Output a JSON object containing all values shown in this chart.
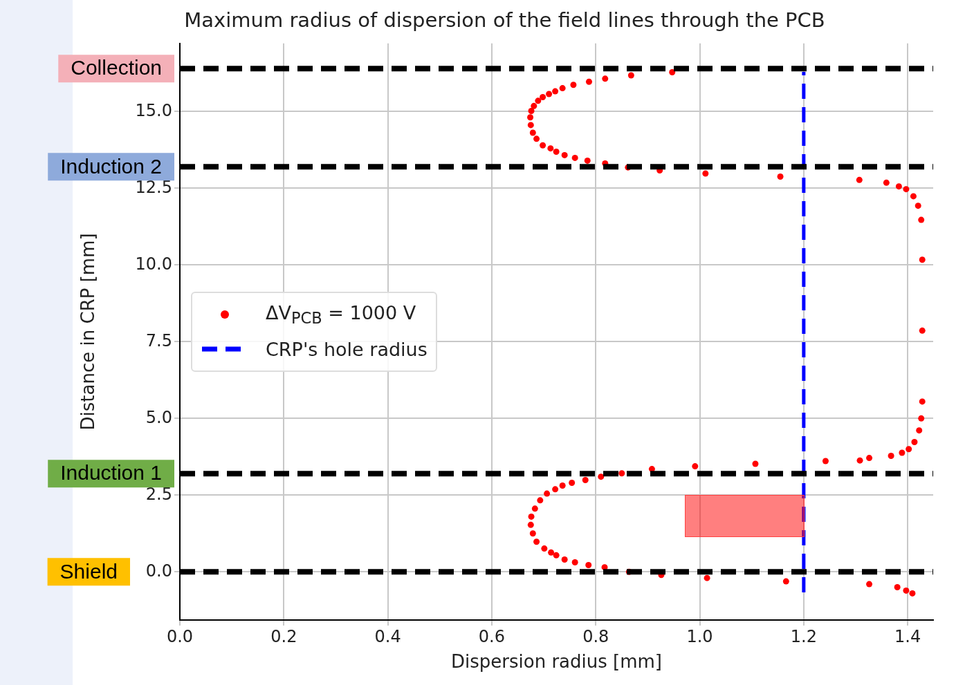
{
  "chart_data": {
    "type": "scatter",
    "title": "Maximum radius of dispersion of the field lines through the PCB",
    "xlabel": "Dispersion radius [mm]",
    "ylabel": "Distance in CRP [mm]",
    "xlim": [
      0,
      1.449
    ],
    "xticks": [
      {
        "value": 0,
        "label": "0.0"
      },
      {
        "value": 0.2,
        "label": "0.2"
      },
      {
        "value": 0.4,
        "label": "0.4"
      },
      {
        "value": 0.6,
        "label": "0.6"
      },
      {
        "value": 0.8,
        "label": "0.8"
      },
      {
        "value": 1,
        "label": "1.0"
      },
      {
        "value": 1.2,
        "label": "1.2"
      },
      {
        "value": 1.4,
        "label": "1.4"
      }
    ],
    "ylim": [
      -1.57,
      17.22
    ],
    "yticks": [
      {
        "value": 0,
        "label": "0.0"
      },
      {
        "value": 2.5,
        "label": "2.5"
      },
      {
        "value": 5,
        "label": "5.0"
      },
      {
        "value": 7.5,
        "label": "7.5"
      },
      {
        "value": 10,
        "label": "10.0"
      },
      {
        "value": 12.5,
        "label": "12.5"
      },
      {
        "value": 15,
        "label": "15.0"
      }
    ],
    "grid": true,
    "legend": "left",
    "series": [
      {
        "name": "ΔV$_{PCB}$ = 1000 V",
        "type": "scatter",
        "marker": "circle",
        "color": "#ff0000",
        "x": [
          0.947,
          0.868,
          0.818,
          0.787,
          0.757,
          0.736,
          0.722,
          0.71,
          0.698,
          0.689,
          0.681,
          0.676,
          0.674,
          0.675,
          0.679,
          0.686,
          0.698,
          0.713,
          0.724,
          0.74,
          0.76,
          0.784,
          0.818,
          0.862,
          0.923,
          1.011,
          1.155,
          1.307,
          1.359,
          1.383,
          1.397,
          1.411,
          1.42,
          1.426,
          1.428,
          1.428,
          1.428,
          1.426,
          1.422,
          1.413,
          1.402,
          1.389,
          1.368,
          1.326,
          1.308,
          1.242,
          1.107,
          0.991,
          0.908,
          0.85,
          0.81,
          0.78,
          0.754,
          0.736,
          0.722,
          0.706,
          0.693,
          0.683,
          0.676,
          0.675,
          0.679,
          0.686,
          0.701,
          0.714,
          0.724,
          0.74,
          0.76,
          0.786,
          0.817,
          0.864,
          0.926,
          1.014,
          1.166,
          1.326,
          1.38,
          1.397,
          1.409
        ],
        "values": [
          16.28,
          16.18,
          16.07,
          15.97,
          15.87,
          15.76,
          15.66,
          15.57,
          15.47,
          15.35,
          15.18,
          15.02,
          14.81,
          14.56,
          14.31,
          14.11,
          13.9,
          13.8,
          13.69,
          13.58,
          13.49,
          13.4,
          13.31,
          13.18,
          13.08,
          12.98,
          12.88,
          12.77,
          12.68,
          12.56,
          12.47,
          12.24,
          11.93,
          11.47,
          10.17,
          7.86,
          5.55,
          5.0,
          4.61,
          4.23,
          4.0,
          3.88,
          3.78,
          3.71,
          3.63,
          3.61,
          3.52,
          3.44,
          3.35,
          3.21,
          3.1,
          2.99,
          2.9,
          2.81,
          2.69,
          2.55,
          2.33,
          2.06,
          1.8,
          1.53,
          1.25,
          0.98,
          0.76,
          0.63,
          0.54,
          0.4,
          0.31,
          0.22,
          0.15,
          0.0,
          -0.1,
          -0.2,
          -0.31,
          -0.4,
          -0.5,
          -0.61,
          -0.7
        ]
      },
      {
        "name": "CRP's hole radius",
        "type": "line",
        "marker": "none",
        "line_style": "dashed",
        "color": "#0000ff",
        "x": [
          1.2,
          1.2
        ],
        "values": [
          -0.67,
          16.29
        ]
      }
    ],
    "ref_lines": [
      {
        "axis": "y",
        "value": 16.4,
        "label": "Collection",
        "color": "#000000",
        "line_style": "dashed"
      },
      {
        "axis": "y",
        "value": 13.2,
        "label": "Induction 2",
        "color": "#000000",
        "line_style": "dashed"
      },
      {
        "axis": "y",
        "value": 3.2,
        "label": "Induction 1",
        "color": "#000000",
        "line_style": "dashed"
      },
      {
        "axis": "y",
        "value": 0,
        "label": "Shield",
        "color": "#000000",
        "line_style": "dashed"
      }
    ]
  }
}
